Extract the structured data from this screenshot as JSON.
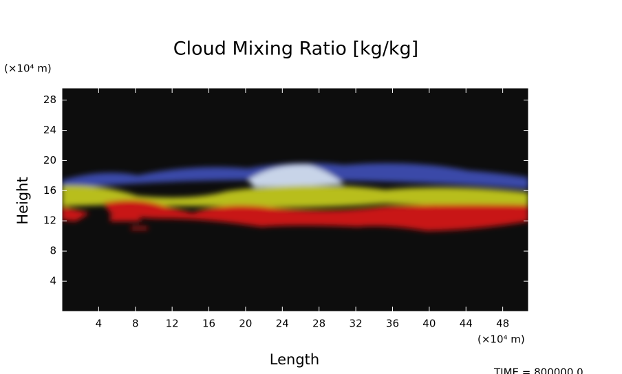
{
  "chart_data": {
    "type": "image",
    "title": "Cloud Mixing Ratio [kg/kg]",
    "x_label": "Length",
    "y_label": "Height",
    "x_unit": "(×10⁴ m)",
    "y_unit": "(×10⁴ m)",
    "xlim": [
      0,
      50.8
    ],
    "ylim": [
      0,
      29.6
    ],
    "xticks": [
      4,
      8,
      12,
      16,
      20,
      24,
      28,
      32,
      36,
      40,
      44,
      48
    ],
    "yticks": [
      4,
      8,
      12,
      16,
      20,
      24,
      28
    ],
    "annotation": "TIME = 800000.0"
  }
}
